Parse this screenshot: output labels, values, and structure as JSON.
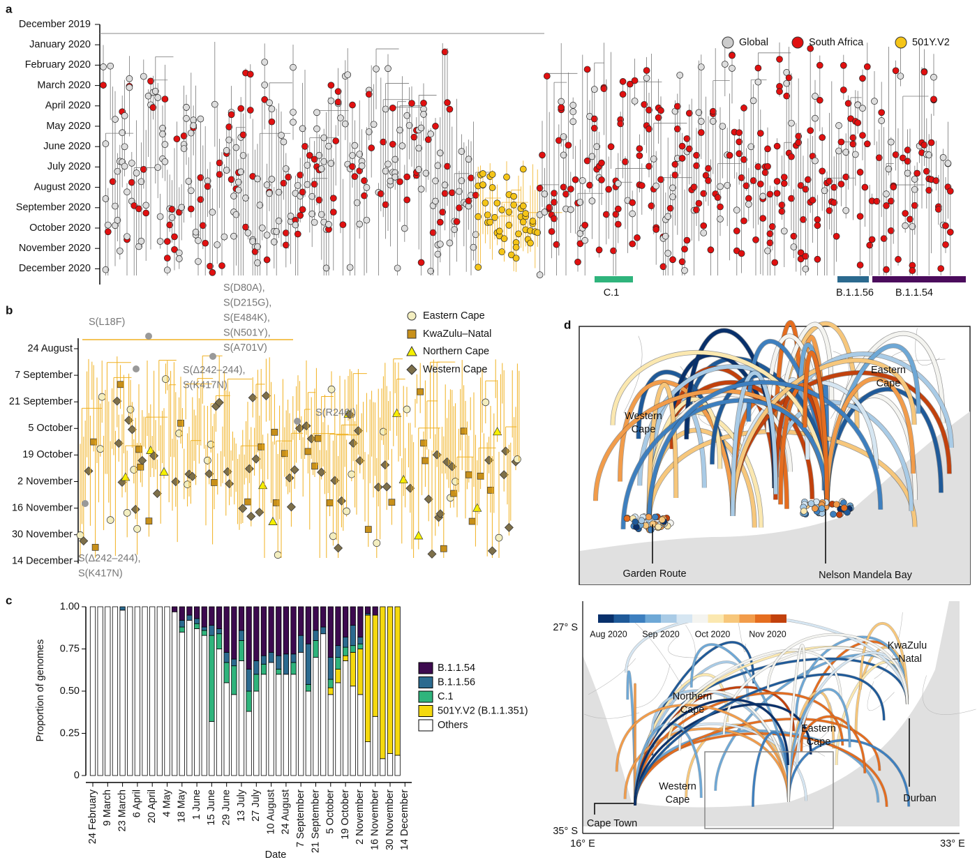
{
  "panel_a": {
    "label": "a",
    "dates": [
      "December 2019",
      "January 2020",
      "February 2020",
      "March 2020",
      "April 2020",
      "May 2020",
      "June 2020",
      "July 2020",
      "August 2020",
      "September 2020",
      "October 2020",
      "November 2020",
      "December 2020"
    ],
    "legend": [
      "Global",
      "South Africa",
      "501Y.V2"
    ],
    "clades": [
      "C.1",
      "B.1.1.56",
      "B.1.1.54"
    ]
  },
  "panel_b": {
    "label": "b",
    "dates": [
      "24 August",
      "7 September",
      "21 September",
      "5 October",
      "19 October",
      "2 November",
      "16 November",
      "30 November",
      "14 December"
    ],
    "legend": [
      "Eastern Cape",
      "KwaZulu–Natal",
      "Northern Cape",
      "Western Cape"
    ],
    "annotations": [
      [
        "S(L18F)"
      ],
      [
        "S(D80A),",
        "S(D215G),",
        "S(E484K),",
        "S(N501Y),",
        "S(A701V)"
      ],
      [
        "S(Δ242–244),",
        "S(K417N)"
      ],
      [
        "S(R246I)"
      ],
      [
        "S(Δ242–244),",
        "S(K417N)"
      ]
    ]
  },
  "chart_data": {
    "type": "stacked_bar",
    "panel": "c",
    "ylabel": "Proportion of genomes",
    "xlabel": "Date",
    "categories": [
      "24 February",
      null,
      "9 March",
      null,
      "23 March",
      null,
      "6 April",
      null,
      "20 April",
      null,
      "4 May",
      null,
      "18 May",
      null,
      "1 June",
      null,
      "15 June",
      null,
      "29 June",
      null,
      "13 July",
      null,
      "27 July",
      null,
      "10 August",
      null,
      "24 August",
      null,
      "7 September",
      null,
      "21 September",
      null,
      "5 October",
      null,
      "19 October",
      null,
      "2 November",
      null,
      "16 November",
      null,
      "30 November",
      null,
      "14 December"
    ],
    "series": [
      {
        "name": "B.1.1.54",
        "color": "#3d0a4f",
        "values": [
          0,
          0,
          0,
          0,
          0,
          0,
          0,
          0,
          0,
          0,
          0,
          0.03,
          0.08,
          0.05,
          0.07,
          0.12,
          0.11,
          0.13,
          0.27,
          0.31,
          0.14,
          0.37,
          0.32,
          0.29,
          0.27,
          0.29,
          0.28,
          0.28,
          0.17,
          0.22,
          0.14,
          0.12,
          0.3,
          0.23,
          0.18,
          0.11,
          0.18,
          0.04,
          0.05,
          0,
          0,
          0,
          null
        ]
      },
      {
        "name": "B.1.1.56",
        "color": "#2b6a8f",
        "values": [
          0,
          0,
          0,
          0,
          0.02,
          0,
          0,
          0,
          0,
          0,
          0,
          0,
          0.04,
          0.03,
          0.03,
          0.02,
          0.06,
          0.03,
          0.06,
          0.04,
          0.06,
          0.13,
          0.08,
          0.05,
          0.06,
          0.08,
          0.12,
          0.05,
          0.1,
          0.24,
          0.06,
          0.04,
          0.13,
          0.07,
          0.06,
          0.12,
          0.04,
          0.01,
          0,
          0,
          0,
          0,
          null
        ]
      },
      {
        "name": "C.1",
        "color": "#2fb47c",
        "values": [
          0,
          0,
          0,
          0,
          0,
          0,
          0,
          0,
          0,
          0,
          0,
          0,
          0.03,
          0,
          0.03,
          0.03,
          0.51,
          0.09,
          0.12,
          0.17,
          0.12,
          0.12,
          0.1,
          0.06,
          0,
          0.03,
          0,
          0.07,
          0,
          0.04,
          0.1,
          0,
          0.05,
          0.07,
          0.05,
          0.04,
          0.03,
          0,
          0,
          0,
          0,
          0,
          null
        ]
      },
      {
        "name": "501Y.V2 (B.1.1.351)",
        "color": "#f5d90f",
        "values": [
          0,
          0,
          0,
          0,
          0,
          0,
          0,
          0,
          0,
          0,
          0,
          0,
          0,
          0,
          0,
          0,
          0,
          0,
          0,
          0,
          0,
          0,
          0,
          0,
          0,
          0,
          0,
          0,
          0,
          0,
          0,
          0,
          0.04,
          0.08,
          0.03,
          0.2,
          0.27,
          0.75,
          0.6,
          0.9,
          0.87,
          0.88,
          null
        ]
      },
      {
        "name": "Others",
        "color": "#ffffff",
        "values": [
          1,
          1,
          1,
          1,
          0.98,
          1,
          1,
          1,
          1,
          1,
          1,
          0.97,
          0.85,
          0.92,
          0.87,
          0.83,
          0.32,
          0.75,
          0.55,
          0.48,
          0.68,
          0.38,
          0.5,
          0.6,
          0.67,
          0.6,
          0.6,
          0.6,
          0.73,
          0.5,
          0.7,
          0.84,
          0.48,
          0.55,
          0.68,
          0.53,
          0.48,
          0.2,
          0.35,
          0.1,
          0.13,
          0.12,
          null
        ]
      }
    ],
    "ylim": [
      0,
      1
    ],
    "yticks": [
      0,
      0.25,
      {
        "value": 0.5,
        "label": "0.50"
      },
      0.75,
      {
        "value": 1,
        "label": "1.00"
      }
    ]
  },
  "panel_d": {
    "label": "d",
    "top_places": [
      [
        "Western",
        "Cape"
      ],
      [
        "Eastern",
        "Cape"
      ],
      [
        "Garden Route"
      ],
      [
        "Nelson Mandela Bay"
      ]
    ],
    "bottom_places": [
      [
        "Northern",
        "Cape"
      ],
      [
        "Eastern",
        "Cape"
      ],
      [
        "KwaZulu",
        "–Natal"
      ],
      [
        "Western",
        "Cape"
      ],
      [
        "Durban"
      ],
      [
        "Cape Town"
      ]
    ],
    "colorbar": [
      "Aug 2020",
      "Sep 2020",
      "Oct 2020",
      "Nov 2020"
    ],
    "lat": [
      "27° S",
      "35° S"
    ],
    "lon": [
      "16° E",
      "33° E"
    ]
  }
}
